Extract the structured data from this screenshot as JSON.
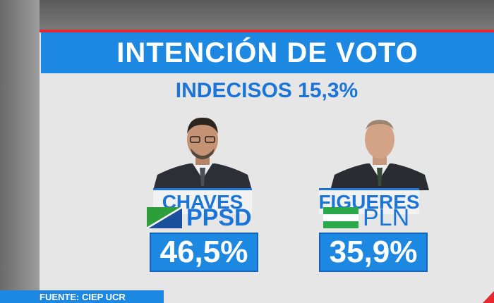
{
  "title": "INTENCIÓN DE VOTO",
  "subtitle": "INDECISOS 15,3%",
  "candidates": [
    {
      "name": "CHAVES",
      "party": "PPSD",
      "percentage": "46,5%",
      "value": 46.5,
      "flag_colors": [
        "#2e9e3a",
        "#1b4f9c"
      ]
    },
    {
      "name": "FIGUERES",
      "party": "PLN",
      "percentage": "35,9%",
      "value": 35.9,
      "flag_colors": [
        "#2aa84a",
        "#ffffff"
      ]
    }
  ],
  "footer": "FUENTE: CIEP UCR",
  "colors": {
    "accent_blue": "#1c88e2",
    "text_blue": "#1b74d8",
    "red": "#e8262f"
  }
}
